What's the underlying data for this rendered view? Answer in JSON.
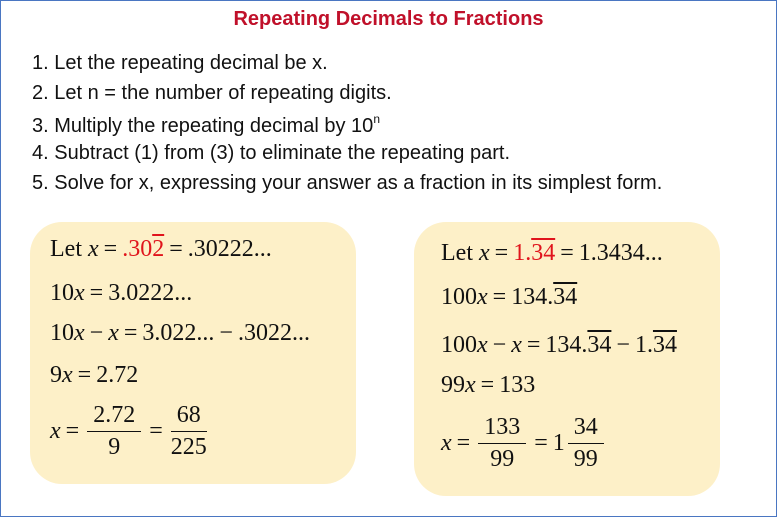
{
  "title": "Repeating Decimals to Fractions",
  "steps": [
    {
      "text": "1. Let the repeating decimal be x."
    },
    {
      "text": "2. Let n = the number of repeating digits."
    },
    {
      "text": "3. Multiply the repeating decimal by 10",
      "sup": "n"
    },
    {
      "text": "4. Subtract (1) from (3) to eliminate the repeating part."
    },
    {
      "text": "5. Solve for x, expressing your answer as a fraction in its simplest form."
    }
  ],
  "boxes": [
    {
      "lines": [
        [
          "Let",
          "x",
          "=",
          ".30",
          "2",
          "=",
          ".30222..."
        ],
        [
          "10",
          "x",
          "=",
          "3.0222..."
        ],
        [
          "10",
          "x",
          "−",
          "x",
          "=",
          "3.022...",
          "−",
          ".3022..."
        ],
        [
          "9",
          "x",
          "=",
          "2.72"
        ],
        [
          "x",
          "=",
          {
            "num": "2.72",
            "den": "9"
          },
          "=",
          {
            "num": "68",
            "den": "225"
          }
        ]
      ]
    },
    {
      "lines": [
        [
          "Let",
          "x",
          "=",
          "1.",
          "34",
          "=",
          "1.3434..."
        ],
        [
          "100",
          "x",
          "=",
          "134.",
          "34"
        ],
        [
          "100",
          "x",
          "−",
          "x",
          "=",
          "134.",
          "34",
          "−",
          "1.",
          "34"
        ],
        [
          "99",
          "x",
          "=",
          "133"
        ],
        [
          "x",
          "=",
          {
            "num": "133",
            "den": "99"
          },
          "=",
          "1",
          {
            "num": "34",
            "den": "99"
          }
        ]
      ]
    }
  ]
}
